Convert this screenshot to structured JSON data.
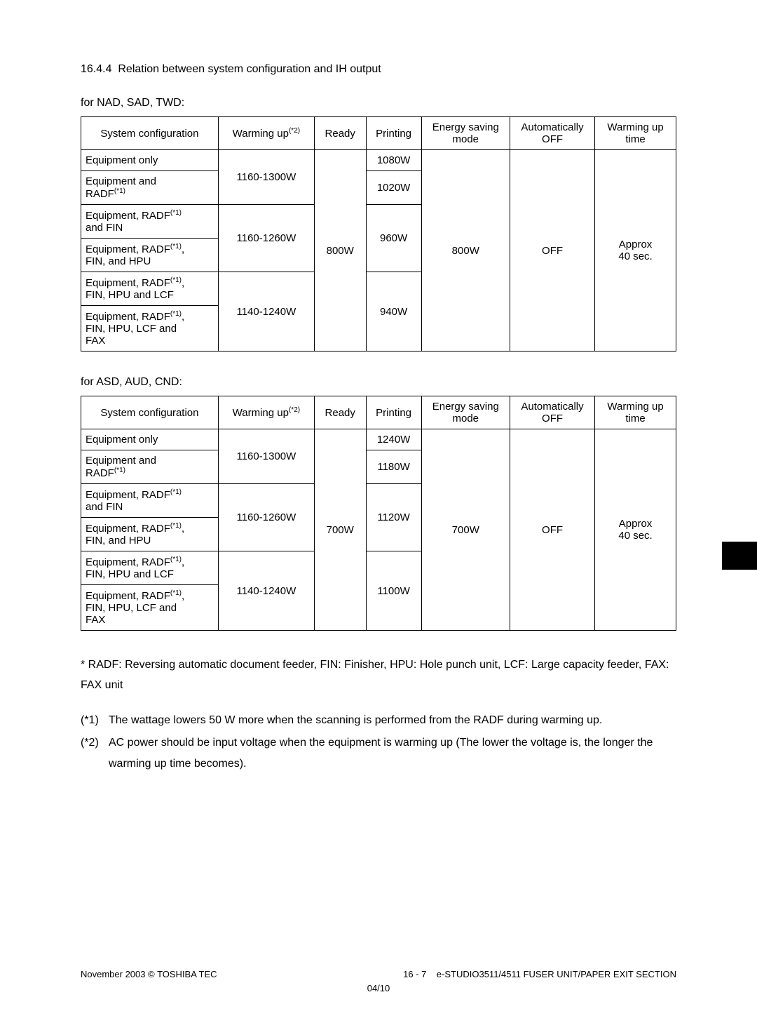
{
  "section_number": "16.4.4",
  "section_title": "Relation between system configuration and IH output",
  "table1_caption": "for NAD, SAD, TWD:",
  "table2_caption": "for ASD, AUD, CND:",
  "headers": {
    "config": "System configuration",
    "warming_up": "Warming up",
    "warming_up_sup": "(*2)",
    "ready": "Ready",
    "printing": "Printing",
    "energy_saving_l1": "Energy saving",
    "energy_saving_l2": "mode",
    "auto_off_l1": "Automatically",
    "auto_off_l2": "OFF",
    "warm_time_l1": "Warming up",
    "warm_time_l2": "time"
  },
  "table1": {
    "rows": [
      {
        "config_parts": [
          "Equipment only"
        ]
      },
      {
        "config_parts": [
          "Equipment and",
          "RADF"
        ],
        "config_sup": "(*1)"
      },
      {
        "config_parts": [
          "Equipment, RADF",
          "and FIN"
        ],
        "sup_at": 0,
        "config_sup": "(*1)"
      },
      {
        "config_parts": [
          "Equipment, RADF",
          "FIN, and HPU"
        ],
        "sup_at": 0,
        "config_sup": "(*1)",
        "comma": ","
      },
      {
        "config_parts": [
          "Equipment, RADF",
          "FIN, HPU and LCF"
        ],
        "sup_at": 0,
        "config_sup": "(*1)",
        "comma": ","
      },
      {
        "config_parts": [
          "Equipment, RADF",
          "FIN,  HPU, LCF and",
          "FAX"
        ],
        "sup_at": 0,
        "config_sup": "(*1)",
        "comma": ","
      }
    ],
    "warming_values": [
      "1160-1300W",
      "1160-1260W",
      "1140-1240W"
    ],
    "ready": "800W",
    "printing": [
      "1080W",
      "1020W",
      "960W",
      "940W"
    ],
    "energy_saving": "800W",
    "auto_off": "OFF",
    "warm_time_l1": "Approx",
    "warm_time_l2": "40 sec."
  },
  "table2": {
    "rows": [
      {
        "config_parts": [
          "Equipment only"
        ]
      },
      {
        "config_parts": [
          "Equipment and",
          "RADF"
        ],
        "config_sup": "(*1)"
      },
      {
        "config_parts": [
          "Equipment, RADF",
          "and FIN"
        ],
        "sup_at": 0,
        "config_sup": "(*1)"
      },
      {
        "config_parts": [
          "Equipment, RADF",
          "FIN, and HPU"
        ],
        "sup_at": 0,
        "config_sup": "(*1)",
        "comma": ","
      },
      {
        "config_parts": [
          "Equipment, RADF",
          "FIN, HPU and LCF"
        ],
        "sup_at": 0,
        "config_sup": "(*1)",
        "comma": ","
      },
      {
        "config_parts": [
          "Equipment, RADF",
          "FIN,  HPU, LCF and",
          "FAX"
        ],
        "sup_at": 0,
        "config_sup": "(*1)",
        "comma": ","
      }
    ],
    "warming_values": [
      "1160-1300W",
      "1160-1260W",
      "1140-1240W"
    ],
    "ready": "700W",
    "printing": [
      "1240W",
      "1180W",
      "1120W",
      "1100W"
    ],
    "energy_saving": "700W",
    "auto_off": "OFF",
    "warm_time_l1": "Approx",
    "warm_time_l2": "40 sec."
  },
  "note_glossary": "* RADF: Reversing automatic document feeder, FIN: Finisher, HPU: Hole punch unit, LCF: Large capacity feeder, FAX: FAX unit",
  "footnote1_num": "(*1)",
  "footnote1": "The wattage lowers 50 W more when the scanning is performed from the RADF during warming up.",
  "footnote2_num": "(*2)",
  "footnote2": "AC power should be input voltage when the equipment is warming up (The lower the voltage is, the longer the warming up time becomes).",
  "footer_left": "November 2003 © TOSHIBA TEC",
  "footer_page": "16 - 7",
  "footer_right": "e-STUDIO3511/4511 FUSER UNIT/PAPER EXIT SECTION",
  "footer_sub": "04/10"
}
